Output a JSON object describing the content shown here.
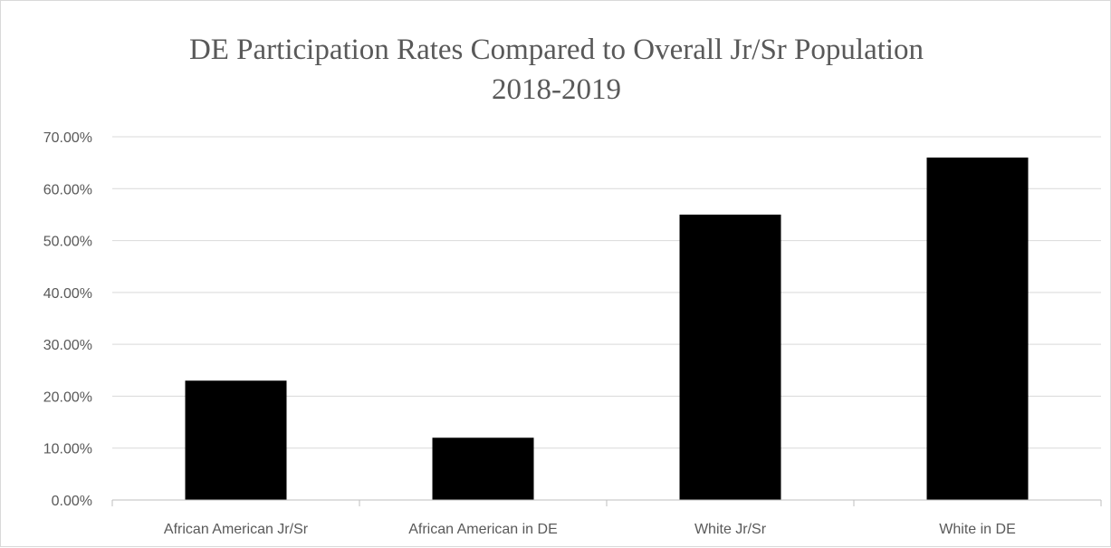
{
  "chart_data": {
    "type": "bar",
    "title_lines": [
      "DE Participation Rates Compared to Overall  Jr/Sr Population",
      "2018-2019"
    ],
    "xlabel": "",
    "ylabel": "",
    "categories": [
      "African American Jr/Sr",
      "African American in DE",
      "White Jr/Sr",
      "White in DE"
    ],
    "values": [
      0.23,
      0.12,
      0.55,
      0.66
    ],
    "ylim": [
      0,
      0.7
    ],
    "yticks": [
      0,
      0.1,
      0.2,
      0.3,
      0.4,
      0.5,
      0.6,
      0.7
    ],
    "ytick_labels": [
      "0.00%",
      "10.00%",
      "20.00%",
      "30.00%",
      "40.00%",
      "50.00%",
      "60.00%",
      "70.00%"
    ],
    "grid": true,
    "legend": "none",
    "colors": {
      "bar": "#000000",
      "grid": "#d9d9d9",
      "axis": "#bfbfbf",
      "text": "#595959"
    }
  }
}
